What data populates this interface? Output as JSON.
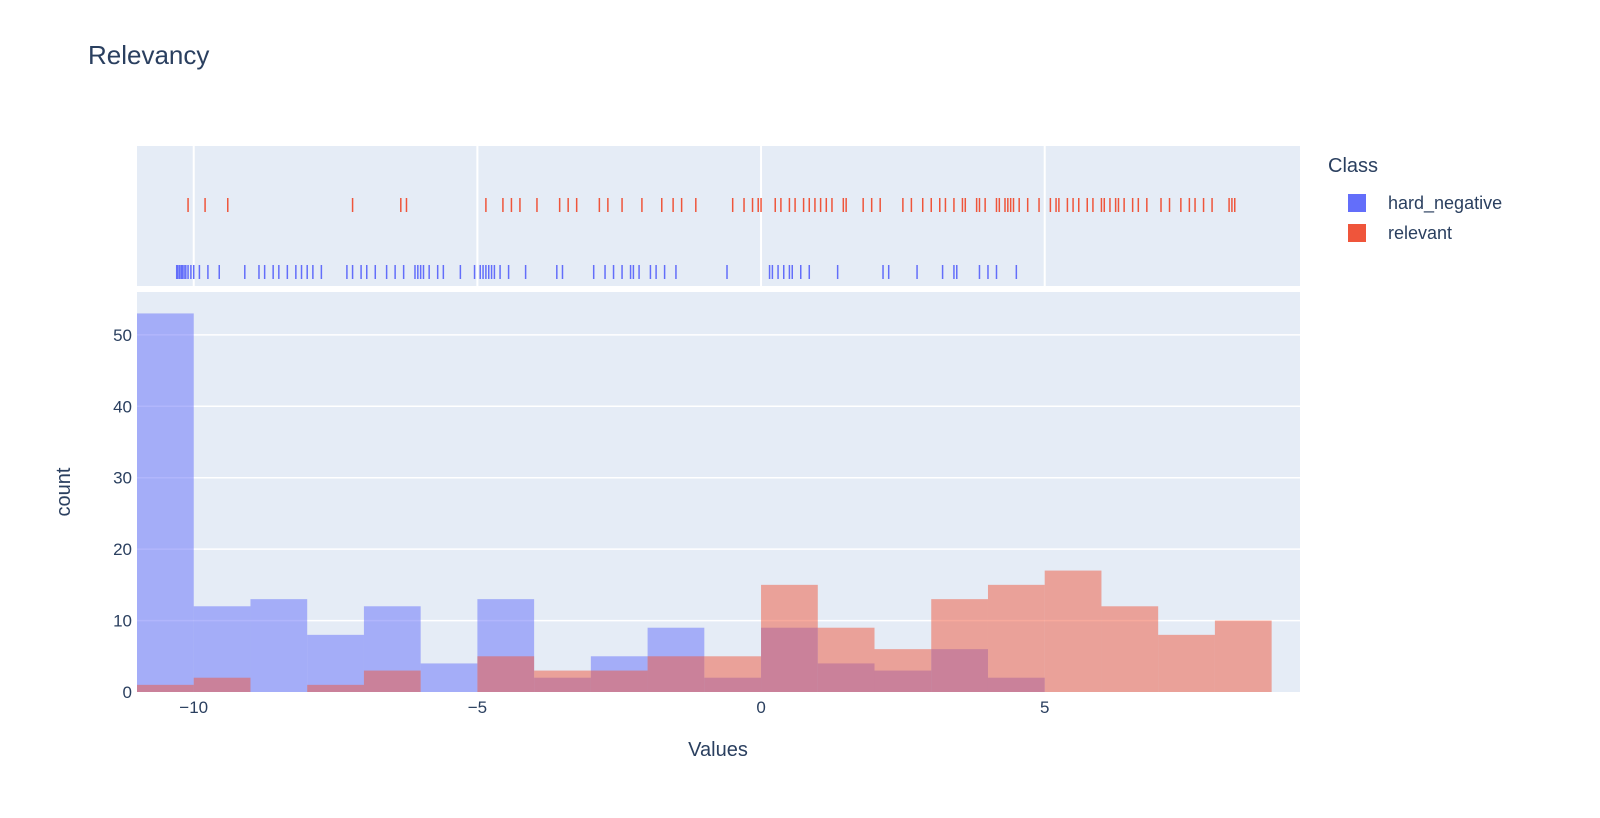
{
  "chart_data": {
    "type": "bar",
    "title": "Relevancy",
    "xlabel": "Values",
    "ylabel": "count",
    "xlim": [
      -11,
      9.5
    ],
    "ylim": [
      0,
      56
    ],
    "x_ticks": [
      -10,
      -5,
      0,
      5
    ],
    "x_tick_labels": [
      "−10",
      "−5",
      "0",
      "5"
    ],
    "y_ticks": [
      0,
      10,
      20,
      30,
      40,
      50
    ],
    "y_tick_labels": [
      "0",
      "10",
      "20",
      "30",
      "40",
      "50"
    ],
    "grid": true,
    "legend_title": "Class",
    "legend_position": "top-right",
    "bin_edges": [
      -11,
      -10,
      -9,
      -8,
      -7,
      -6,
      -5,
      -4,
      -3,
      -2,
      -1,
      0,
      1,
      2,
      3,
      4,
      5,
      6,
      7,
      8,
      9
    ],
    "series": [
      {
        "name": "hard_negative",
        "color": "#636efa",
        "counts": [
          53,
          12,
          13,
          8,
          12,
          4,
          13,
          2,
          5,
          9,
          2,
          9,
          4,
          3,
          6,
          2,
          0,
          0,
          0,
          0
        ],
        "rug": [
          -10.3,
          -10.28,
          -10.25,
          -10.22,
          -10.2,
          -10.17,
          -10.14,
          -10.1,
          -10.05,
          -10.0,
          -9.9,
          -9.75,
          -9.55,
          -9.1,
          -8.85,
          -8.75,
          -8.6,
          -8.5,
          -8.35,
          -8.2,
          -8.1,
          -8.0,
          -7.9,
          -7.75,
          -7.3,
          -7.2,
          -7.05,
          -6.95,
          -6.8,
          -6.6,
          -6.45,
          -6.3,
          -6.1,
          -6.05,
          -6.0,
          -5.95,
          -5.85,
          -5.7,
          -5.6,
          -5.3,
          -5.05,
          -4.95,
          -4.9,
          -4.85,
          -4.8,
          -4.75,
          -4.7,
          -4.6,
          -4.45,
          -4.15,
          -3.6,
          -3.5,
          -2.95,
          -2.75,
          -2.6,
          -2.45,
          -2.3,
          -2.25,
          -2.15,
          -1.95,
          -1.85,
          -1.7,
          -1.5,
          -0.6,
          0.15,
          0.2,
          0.3,
          0.4,
          0.5,
          0.55,
          0.7,
          0.85,
          1.35,
          2.15,
          2.25,
          2.75,
          3.2,
          3.4,
          3.45,
          3.85,
          4.0,
          4.15,
          4.5
        ]
      },
      {
        "name": "relevant",
        "color": "#ef553b",
        "counts": [
          1,
          2,
          0,
          1,
          3,
          0,
          5,
          3,
          3,
          5,
          5,
          15,
          9,
          6,
          13,
          15,
          17,
          12,
          8,
          10
        ],
        "rug": [
          -10.1,
          -9.8,
          -9.4,
          -7.2,
          -6.35,
          -6.25,
          -4.85,
          -4.55,
          -4.4,
          -4.25,
          -3.95,
          -3.55,
          -3.4,
          -3.25,
          -2.85,
          -2.7,
          -2.45,
          -2.1,
          -1.75,
          -1.55,
          -1.4,
          -1.15,
          -0.5,
          -0.3,
          -0.15,
          -0.05,
          0.0,
          0.25,
          0.35,
          0.5,
          0.6,
          0.75,
          0.85,
          0.95,
          1.05,
          1.15,
          1.25,
          1.45,
          1.5,
          1.8,
          1.95,
          2.1,
          2.5,
          2.65,
          2.85,
          3.0,
          3.15,
          3.25,
          3.4,
          3.55,
          3.6,
          3.8,
          3.85,
          3.95,
          4.15,
          4.2,
          4.3,
          4.35,
          4.4,
          4.45,
          4.55,
          4.7,
          4.9,
          5.1,
          5.2,
          5.25,
          5.4,
          5.5,
          5.6,
          5.75,
          5.85,
          6.0,
          6.05,
          6.15,
          6.25,
          6.3,
          6.4,
          6.55,
          6.65,
          6.8,
          7.05,
          7.2,
          7.4,
          7.55,
          7.65,
          7.8,
          7.95,
          8.25,
          8.3,
          8.35
        ]
      }
    ]
  }
}
